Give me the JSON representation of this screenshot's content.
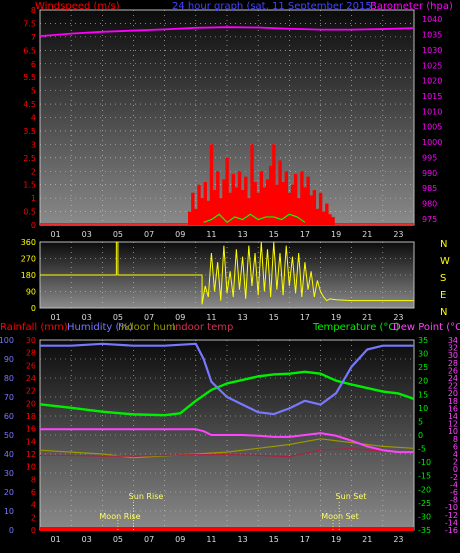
{
  "title": "24 hour graph (sat, 11 September 2015",
  "panel_wind": {
    "left_label": "Windspeed (m/s)",
    "right_label": "Barometer (hpa)",
    "left_ticks": [
      "8",
      "7.5",
      "7",
      "6.5",
      "6",
      "5.5",
      "5",
      "4.5",
      "4",
      "3.5",
      "3",
      "2.5",
      "2",
      "1.5",
      "1",
      "0.5",
      "0"
    ],
    "right_ticks": [
      "1040",
      "1035",
      "1030",
      "1025",
      "1020",
      "1015",
      "1010",
      "1005",
      "1000",
      "995",
      "990",
      "985",
      "980",
      "975"
    ],
    "x_ticks": [
      "01",
      "03",
      "05",
      "07",
      "09",
      "11",
      "13",
      "15",
      "17",
      "19",
      "21",
      "23"
    ]
  },
  "panel_dir": {
    "left_ticks": [
      "360",
      "270",
      "180",
      "90",
      "0"
    ],
    "compass": [
      "N",
      "W",
      "S",
      "E",
      "N"
    ],
    "x_ticks": [
      "01",
      "03",
      "05",
      "07",
      "09",
      "11",
      "13",
      "15",
      "17",
      "19",
      "21",
      "23"
    ]
  },
  "panel_temp": {
    "labels": {
      "rainfall": "Rainfall (mm)",
      "humidity": "Humidity (%)",
      "indoor_hum": "Indoor hum",
      "indoor_temp": "Indoor temp",
      "temperature": "Temperature (°C)",
      "dew_point": "Dew Point (°C)"
    },
    "hum_ticks": [
      "100",
      "90",
      "80",
      "70",
      "60",
      "50",
      "40",
      "30",
      "20",
      "10",
      "0"
    ],
    "rain_ticks": [
      "30",
      "28",
      "26",
      "24",
      "22",
      "20",
      "18",
      "16",
      "14",
      "12",
      "10",
      "8",
      "6",
      "4",
      "2",
      "0"
    ],
    "temp_ticks": [
      "35",
      "30",
      "25",
      "20",
      "15",
      "10",
      "5",
      "0",
      "-5",
      "-10",
      "-15",
      "-20",
      "-25",
      "-30",
      "-35"
    ],
    "dew_ticks": [
      "34",
      "32",
      "30",
      "28",
      "26",
      "24",
      "22",
      "20",
      "18",
      "16",
      "14",
      "12",
      "10",
      "8",
      "6",
      "4",
      "2",
      "0",
      "-2",
      "-4",
      "-6",
      "-8",
      "-10",
      "-12",
      "-14",
      "-16"
    ],
    "x_ticks": [
      "01",
      "03",
      "05",
      "07",
      "09",
      "11",
      "13",
      "15",
      "17",
      "19",
      "21",
      "23"
    ],
    "annotations": {
      "sun_rise": "Sun Rise",
      "moon_rise": "Moon Rise",
      "sun_set": "Sun Set",
      "moon_set": "Moon Set"
    }
  },
  "colors": {
    "windspeed": "#ff0000",
    "barometer": "#ff00ff",
    "gust": "#00ff00",
    "direction": "#ffff00",
    "humidity": "#7777ff",
    "temperature": "#00ee00",
    "dew_point": "#ff44ff",
    "indoor_hum": "#999900",
    "indoor_temp": "#aa2244",
    "rain": "#ff0000"
  },
  "chart_data": [
    {
      "type": "bar",
      "title": "24 hour graph (sat, 11 September 2015",
      "ylabel": "Windspeed (m/s)",
      "y2label": "Barometer (hpa)",
      "ylim": [
        0,
        8
      ],
      "y2lim": [
        973,
        1043
      ],
      "xlim": [
        0,
        24
      ],
      "series": [
        {
          "name": "Windspeed (m/s)",
          "x": [
            9.6,
            9.8,
            10.0,
            10.2,
            10.4,
            10.6,
            10.8,
            11.0,
            11.2,
            11.4,
            11.6,
            11.8,
            12.0,
            12.2,
            12.4,
            12.6,
            12.8,
            13.0,
            13.2,
            13.4,
            13.6,
            13.8,
            14.0,
            14.2,
            14.4,
            14.6,
            14.8,
            15.0,
            15.2,
            15.4,
            15.6,
            15.8,
            16.0,
            16.2,
            16.4,
            16.6,
            16.8,
            17.0,
            17.2,
            17.4,
            17.6,
            17.8,
            18.0,
            18.2,
            18.4,
            18.6,
            18.8
          ],
          "values": [
            0.5,
            1.2,
            0.6,
            1.5,
            1.0,
            1.6,
            0.9,
            3.0,
            1.3,
            2.0,
            1.0,
            1.7,
            2.5,
            1.2,
            1.9,
            1.4,
            2.0,
            1.3,
            1.8,
            1.0,
            3.0,
            1.6,
            1.2,
            2.0,
            1.4,
            1.7,
            2.2,
            3.0,
            1.5,
            2.4,
            1.6,
            2.0,
            1.2,
            1.5,
            1.9,
            1.0,
            2.0,
            1.4,
            1.8,
            1.1,
            1.3,
            0.6,
            1.2,
            0.5,
            0.8,
            0.4,
            0.3
          ]
        },
        {
          "name": "Gust",
          "x": [
            10.5,
            11.0,
            11.5,
            12.0,
            12.5,
            13.0,
            13.5,
            14.0,
            14.5,
            15.0,
            15.5,
            16.0,
            16.5,
            17.0
          ],
          "values": [
            0.1,
            0.2,
            0.4,
            0.1,
            0.3,
            0.2,
            0.4,
            0.2,
            0.3,
            0.3,
            0.2,
            0.4,
            0.3,
            0.1
          ]
        },
        {
          "name": "Barometer (hpa)",
          "axis": "y2",
          "x": [
            0,
            2,
            4,
            6,
            8,
            10,
            12,
            14,
            16,
            18,
            20,
            22,
            24
          ],
          "values": [
            1034.5,
            1035.3,
            1035.9,
            1036.3,
            1036.7,
            1037.2,
            1037.4,
            1037.3,
            1036.9,
            1036.6,
            1036.6,
            1036.8,
            1037.1
          ]
        }
      ]
    },
    {
      "type": "line",
      "ylim": [
        0,
        360
      ],
      "xlim": [
        0,
        24
      ],
      "series": [
        {
          "name": "Wind direction",
          "x": [
            0,
            4.9,
            4.9,
            5.0,
            5.0,
            10.4,
            10.4,
            10.6,
            10.8,
            11.0,
            11.2,
            11.4,
            11.6,
            11.8,
            12.0,
            12.2,
            12.4,
            12.6,
            12.8,
            13.0,
            13.2,
            13.4,
            13.6,
            13.8,
            14.0,
            14.2,
            14.4,
            14.6,
            14.8,
            15.0,
            15.2,
            15.4,
            15.6,
            15.8,
            16.0,
            16.2,
            16.4,
            16.6,
            16.8,
            17.0,
            17.2,
            17.4,
            17.6,
            17.8,
            18.0,
            18.2,
            18.4,
            18.6,
            19.0,
            20.0,
            22.0,
            24.0
          ],
          "values": [
            180,
            180,
            360,
            360,
            180,
            180,
            20,
            120,
            60,
            300,
            90,
            250,
            40,
            340,
            80,
            200,
            60,
            320,
            100,
            280,
            50,
            340,
            120,
            300,
            70,
            360,
            90,
            320,
            60,
            360,
            100,
            300,
            70,
            340,
            120,
            280,
            80,
            300,
            60,
            250,
            100,
            200,
            60,
            150,
            90,
            60,
            40,
            50,
            45,
            40,
            40,
            40
          ]
        }
      ]
    },
    {
      "type": "line",
      "xlim": [
        0,
        24
      ],
      "series": [
        {
          "name": "Humidity (%)",
          "axis": "humidity",
          "ylim": [
            0,
            100
          ],
          "x": [
            0,
            2,
            4,
            6,
            8,
            10,
            10.5,
            11,
            12,
            13,
            14,
            15,
            16,
            17,
            18,
            19,
            20,
            21,
            22,
            23,
            24
          ],
          "values": [
            97,
            97,
            98,
            97,
            97,
            98,
            90,
            78,
            70,
            66,
            62,
            61,
            64,
            68,
            66,
            72,
            86,
            95,
            97,
            97,
            97
          ]
        },
        {
          "name": "Temperature (°C)",
          "axis": "temperature",
          "ylim": [
            -35,
            35
          ],
          "x": [
            0,
            2,
            4,
            6,
            8,
            9,
            10,
            11,
            12,
            13,
            14,
            15,
            16,
            17,
            18,
            19,
            20,
            21,
            22,
            23,
            24
          ],
          "values": [
            11.3,
            10.0,
            8.6,
            7.6,
            7.3,
            8.0,
            12.6,
            16.6,
            19.0,
            20.3,
            21.6,
            22.3,
            22.6,
            23.3,
            22.6,
            20.0,
            18.6,
            17.3,
            16.0,
            15.3,
            13.3
          ]
        },
        {
          "name": "Dew Point (°C)",
          "axis": "dew_point",
          "ylim": [
            -16,
            34
          ],
          "x": [
            0,
            10,
            10.5,
            11,
            12,
            13,
            14,
            15,
            16,
            17,
            18,
            19,
            20,
            21,
            22,
            23,
            24
          ],
          "values": [
            10.5,
            10.5,
            10.0,
            9.0,
            9.0,
            9.0,
            8.8,
            8.5,
            8.5,
            9.0,
            9.5,
            8.8,
            7.5,
            6.0,
            5.0,
            4.5,
            4.5
          ]
        },
        {
          "name": "Indoor hum",
          "axis": "humidity",
          "ylim": [
            0,
            100
          ],
          "x": [
            0,
            2,
            4,
            6,
            8,
            10,
            12,
            14,
            16,
            18,
            20,
            22,
            24
          ],
          "values": [
            42,
            41,
            40,
            38,
            39,
            40,
            41,
            43,
            45,
            48,
            46,
            44,
            43
          ]
        },
        {
          "name": "Indoor temp",
          "axis": "temperature",
          "ylim": [
            -35,
            35
          ],
          "x": [
            0,
            2,
            4,
            6,
            8,
            10,
            12,
            14,
            16,
            18,
            20,
            22,
            24
          ],
          "values": [
            -7.5,
            -7.5,
            -7.8,
            -7.8,
            -7.5,
            -7.2,
            -7.2,
            -7.5,
            -8.0,
            -5.5,
            -5.0,
            -6.0,
            -6.5
          ]
        },
        {
          "name": "Rainfall (mm)",
          "axis": "rainfall",
          "ylim": [
            0,
            30
          ],
          "x": [
            0,
            24
          ],
          "values": [
            0,
            0
          ]
        }
      ]
    }
  ]
}
